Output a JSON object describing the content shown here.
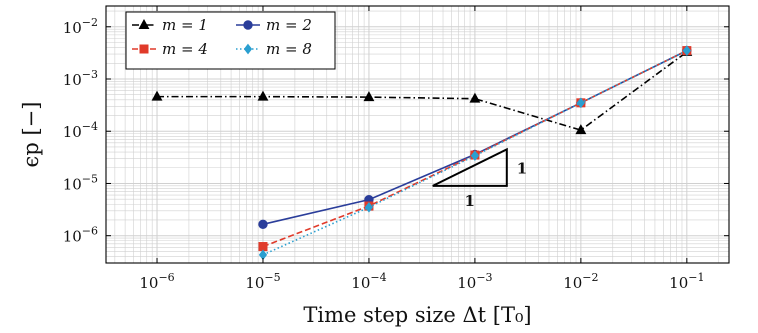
{
  "chart_data": {
    "type": "line",
    "xscale": "log",
    "yscale": "log",
    "xlabel": "Time step size Δt [T₀]",
    "ylabel": "ϵp [−]",
    "xlim": [
      3.3e-07,
      0.25
    ],
    "ylim": [
      3e-07,
      0.025
    ],
    "grid": true,
    "legend_position": "top-left",
    "x_ticks": [
      {
        "value": 1e-06,
        "base": "10",
        "exp": "−6"
      },
      {
        "value": 1e-05,
        "base": "10",
        "exp": "−5"
      },
      {
        "value": 0.0001,
        "base": "10",
        "exp": "−4"
      },
      {
        "value": 0.001,
        "base": "10",
        "exp": "−3"
      },
      {
        "value": 0.01,
        "base": "10",
        "exp": "−2"
      },
      {
        "value": 0.1,
        "base": "10",
        "exp": "−1"
      }
    ],
    "y_ticks": [
      {
        "value": 1e-06,
        "base": "10",
        "exp": "−6"
      },
      {
        "value": 1e-05,
        "base": "10",
        "exp": "−5"
      },
      {
        "value": 0.0001,
        "base": "10",
        "exp": "−4"
      },
      {
        "value": 0.001,
        "base": "10",
        "exp": "−3"
      },
      {
        "value": 0.01,
        "base": "10",
        "exp": "−2"
      }
    ],
    "series": [
      {
        "name": "m = 1",
        "color": "#000000",
        "dash": "dashdot",
        "marker": "triangle",
        "x": [
          1e-06,
          1e-05,
          0.0001,
          0.001,
          0.01,
          0.1
        ],
        "y": [
          0.00046,
          0.00046,
          0.00045,
          0.00042,
          0.000105,
          0.0033
        ]
      },
      {
        "name": "m = 2",
        "color": "#2a3d9a",
        "dash": "solid",
        "marker": "circle",
        "x": [
          1e-05,
          0.0001,
          0.001,
          0.01,
          0.1
        ],
        "y": [
          1.65e-06,
          4.9e-06,
          3.6e-05,
          0.00035,
          0.0035
        ]
      },
      {
        "name": "m = 4",
        "color": "#e03a2a",
        "dash": "dashed",
        "marker": "square",
        "x": [
          1e-05,
          0.0001,
          0.001,
          0.01,
          0.1
        ],
        "y": [
          6.2e-07,
          3.7e-06,
          3.5e-05,
          0.00035,
          0.0035
        ]
      },
      {
        "name": "m = 8",
        "color": "#2a9fd0",
        "dash": "dotted",
        "marker": "diamond",
        "x": [
          1e-05,
          0.0001,
          0.001,
          0.01,
          0.1
        ],
        "y": [
          4.3e-07,
          3.5e-06,
          3.4e-05,
          0.00035,
          0.0035
        ]
      }
    ],
    "slope_triangle": {
      "x1": 0.0004,
      "x2": 0.002,
      "y1": 9e-06,
      "y2": 4.5e-05,
      "run_label": "1",
      "rise_label": "1"
    }
  }
}
